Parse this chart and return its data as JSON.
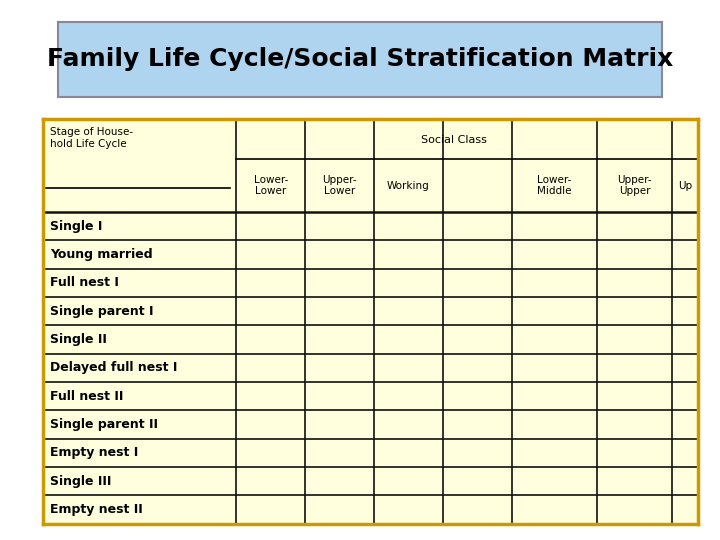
{
  "title": "Family Life Cycle/Social Stratification Matrix",
  "title_bg": "#aed4f0",
  "title_color": "#000000",
  "title_fontsize": 18,
  "table_bg": "#ffffdd",
  "table_border_color": "#cc9900",
  "grid_color": "#111111",
  "header_label_line1": "Stage of House-",
  "header_label_line2": "hold Life Cycle",
  "header_social_class": "Social Class",
  "col_headers": [
    "Lower-\nLower",
    "Upper-\nLower",
    "Working",
    "",
    "Lower-\nMiddle",
    "Upper-\nUpper",
    "Up"
  ],
  "rows": [
    "Single I",
    "Young married",
    "Full nest I",
    "Single parent I",
    "Single II",
    "Delayed full nest I",
    "Full nest II",
    "Single parent II",
    "Empty nest I",
    "Single III",
    "Empty nest II"
  ],
  "fig_bg": "#ffffff",
  "fig_w": 7.2,
  "fig_h": 5.4,
  "dpi": 100
}
